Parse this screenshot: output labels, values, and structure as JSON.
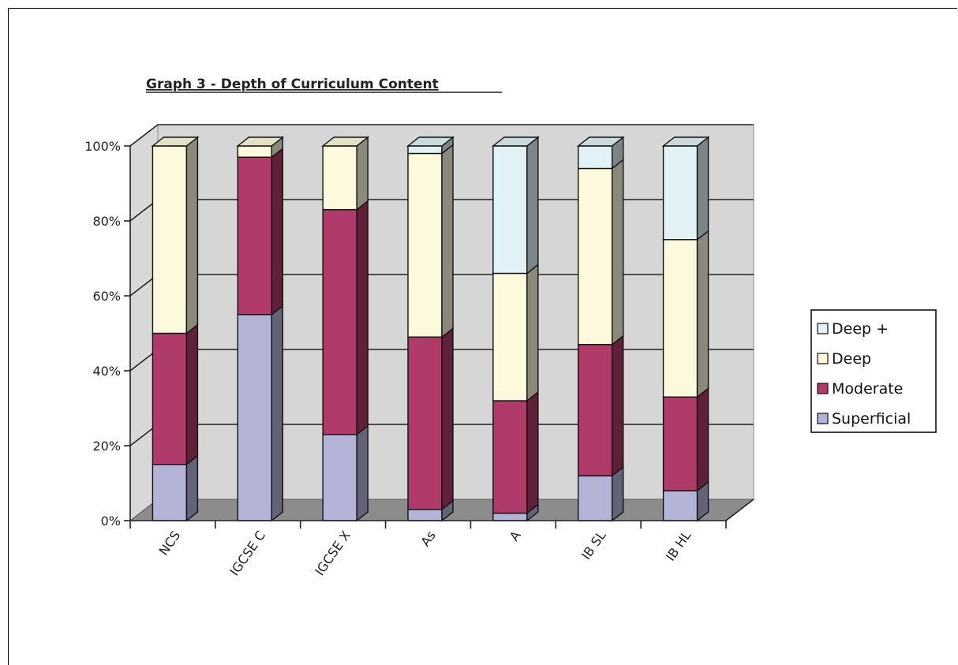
{
  "chart_data": {
    "type": "bar",
    "stacked": true,
    "percent_stacked": true,
    "three_d": true,
    "title": "Graph 3 - Depth of Curriculum Content",
    "xlabel": "",
    "ylabel": "",
    "ylim": [
      0,
      100
    ],
    "yticks": [
      "0%",
      "20%",
      "40%",
      "60%",
      "80%",
      "100%"
    ],
    "categories": [
      "NCS",
      "IGCSE C",
      "IGCSE X",
      "As",
      "A",
      "IB SL",
      "IB HL"
    ],
    "series": [
      {
        "name": "Superficial",
        "color": "#b4b4d8",
        "values": [
          15,
          55,
          23,
          3,
          2,
          12,
          8
        ]
      },
      {
        "name": "Moderate",
        "color": "#b03a6a",
        "values": [
          35,
          42,
          60,
          46,
          30,
          35,
          25
        ]
      },
      {
        "name": "Deep",
        "color": "#fdf9dc",
        "values": [
          50,
          3,
          17,
          49,
          34,
          47,
          42
        ]
      },
      {
        "name": "Deep +",
        "color": "#e2f1f6",
        "values": [
          0,
          0,
          0,
          2,
          34,
          6,
          25
        ]
      }
    ],
    "legend": [
      "Deep +",
      "Deep",
      "Moderate",
      "Superficial"
    ],
    "legend_position": "right",
    "grid": true
  }
}
